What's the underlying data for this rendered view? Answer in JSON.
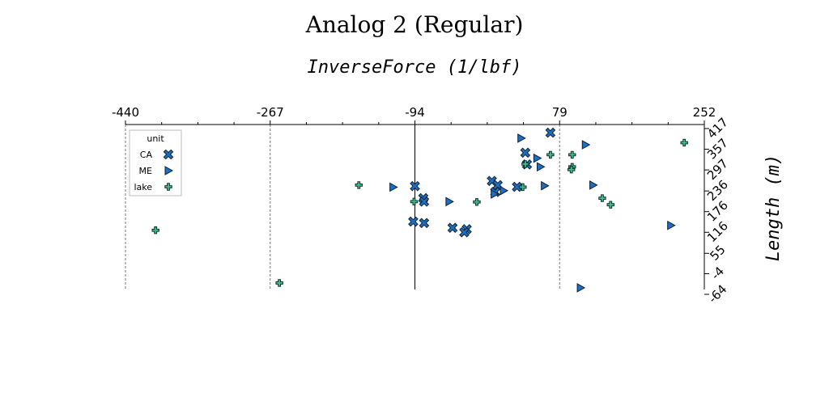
{
  "chart_data": {
    "type": "scatter",
    "title": "Analog 2 (Regular)",
    "xlabel": "InverseForce (1/lbf)",
    "ylabel": "Length (m)",
    "xlim": [
      -440,
      252
    ],
    "ylim": [
      -64,
      417
    ],
    "x_ticks": [
      "-440",
      "-267",
      "-94",
      "79",
      "252"
    ],
    "y_ticks": [
      "417",
      "357",
      "297",
      "236",
      "176",
      "116",
      "55",
      "-4",
      "-64"
    ],
    "x_axis_position": "top",
    "y_axis_position": "right",
    "grid": "vertical dashed at x ticks",
    "zero_line": "solid vertical at x=-94",
    "legend": {
      "title": "unit",
      "placement": "top-left"
    },
    "series": [
      {
        "name": "CA",
        "marker": "x",
        "color": "#1f6fbf",
        "points": [
          [
            68,
            405
          ],
          [
            -94,
            250
          ],
          [
            -2,
            265
          ],
          [
            5,
            253
          ],
          [
            -84,
            215
          ],
          [
            2,
            233
          ],
          [
            -83,
            205
          ],
          [
            -96,
            147
          ],
          [
            -83,
            143
          ],
          [
            -49,
            129
          ],
          [
            -32,
            125
          ],
          [
            -35,
            116
          ],
          [
            28,
            248
          ],
          [
            38,
            347
          ],
          [
            40,
            313
          ]
        ]
      },
      {
        "name": "ME",
        "marker": "triangle",
        "color": "#1f6fbf",
        "points": [
          [
            -120,
            247
          ],
          [
            -53,
            205
          ],
          [
            1,
            227
          ],
          [
            12,
            237
          ],
          [
            33,
            389
          ],
          [
            52,
            331
          ],
          [
            56,
            306
          ],
          [
            61,
            251
          ],
          [
            110,
            370
          ],
          [
            119,
            253
          ],
          [
            212,
            136
          ],
          [
            104,
            -45
          ]
        ]
      },
      {
        "name": "lake",
        "marker": "plus",
        "color": "#3fbf8f",
        "points": [
          [
            -161,
            253
          ],
          [
            -95,
            205
          ],
          [
            -20,
            204
          ],
          [
            35,
            247
          ],
          [
            38,
            314
          ],
          [
            68,
            341
          ],
          [
            94,
            341
          ],
          [
            94,
            306
          ],
          [
            93,
            298
          ],
          [
            130,
            215
          ],
          [
            140,
            196
          ],
          [
            228,
            376
          ],
          [
            -404,
            122
          ],
          [
            -256,
            -31
          ]
        ]
      }
    ]
  }
}
